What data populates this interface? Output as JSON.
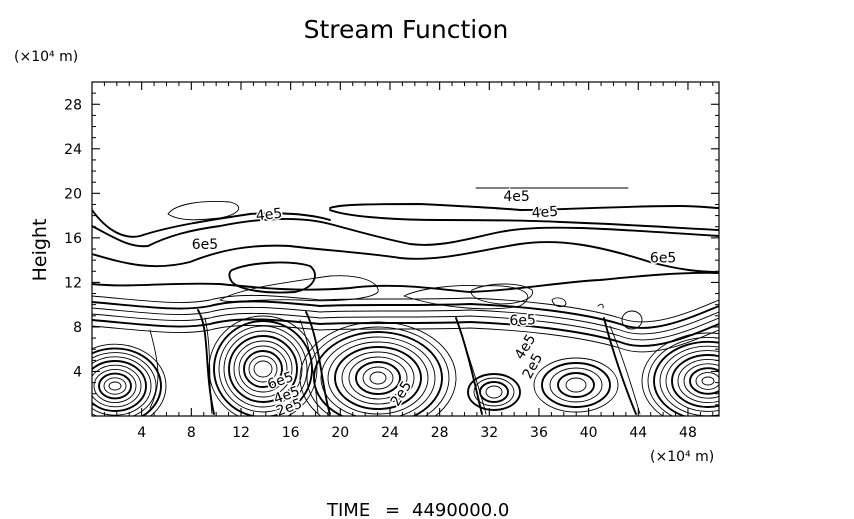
{
  "chart_data": {
    "type": "contour",
    "title": "Stream Function",
    "xlabel": "",
    "ylabel": "Height",
    "x_unit": "(×10⁴ m)",
    "y_unit": "(×10⁴ m)",
    "xlim": [
      0,
      50.5
    ],
    "ylim": [
      0,
      30
    ],
    "x_ticks": [
      4,
      8,
      12,
      16,
      20,
      24,
      28,
      32,
      36,
      40,
      44,
      48
    ],
    "y_ticks": [
      4,
      8,
      12,
      16,
      20,
      24,
      28
    ],
    "contour_labels": [
      {
        "text": "4e5",
        "x": 14.3,
        "y": 17.7,
        "rot": -6
      },
      {
        "text": "6e5",
        "x": 9.1,
        "y": 15.0,
        "rot": 0
      },
      {
        "text": "4e5",
        "x": 34.2,
        "y": 19.3,
        "rot": 0
      },
      {
        "text": "4e5",
        "x": 36.5,
        "y": 17.9,
        "rot": -4
      },
      {
        "text": "6e5",
        "x": 46.0,
        "y": 13.8,
        "rot": 0
      },
      {
        "text": "6e5",
        "x": 34.7,
        "y": 8.2,
        "rot": -2
      },
      {
        "text": "4e5",
        "x": 35.2,
        "y": 6.0,
        "rot": -58
      },
      {
        "text": "2e5",
        "x": 35.8,
        "y": 4.3,
        "rot": -62
      },
      {
        "text": "2e5",
        "x": 25.2,
        "y": 1.8,
        "rot": -58
      },
      {
        "text": "6e5",
        "x": 15.3,
        "y": 2.8,
        "rot": -20
      },
      {
        "text": "4e5",
        "x": 15.8,
        "y": 1.5,
        "rot": -20
      },
      {
        "text": "2e5",
        "x": 16.0,
        "y": 0.4,
        "rot": -20
      }
    ],
    "grid": false,
    "legend": "none"
  },
  "footer": {
    "time_label": "TIME",
    "time_sep": "=",
    "time_value": "4490000.0"
  }
}
